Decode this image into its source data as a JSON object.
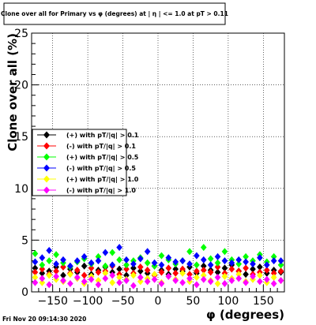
{
  "title": "Clone  over all for Primary vs φ (degrees) at | η | <= 1.0 at pT > 0.11",
  "timestamp": "Fri Nov 20 09:14:30 2020",
  "chart_data": {
    "type": "scatter",
    "xlabel": "φ (degrees)",
    "ylabel": "Clone  over all (%)",
    "xlim": [
      -180,
      180
    ],
    "ylim": [
      0,
      25
    ],
    "x_ticks": [
      -150,
      -100,
      -50,
      0,
      50,
      100,
      150
    ],
    "y_ticks": [
      0,
      5,
      10,
      15,
      20,
      25
    ],
    "grid": true,
    "legend_position": "left-middle",
    "marker": "diamond",
    "x": [
      -175,
      -165,
      -155,
      -145,
      -135,
      -125,
      -115,
      -105,
      -95,
      -85,
      -75,
      -65,
      -55,
      -45,
      -35,
      -25,
      -15,
      -5,
      5,
      15,
      25,
      35,
      45,
      55,
      65,
      75,
      85,
      95,
      105,
      115,
      125,
      135,
      145,
      155,
      165,
      175
    ],
    "series": [
      {
        "name": "(+) with pT/|q| > 0.1",
        "color": "#000000",
        "values": [
          2.3,
          1.8,
          2.0,
          2.4,
          1.6,
          2.2,
          1.9,
          2.5,
          1.7,
          2.1,
          2.4,
          1.9,
          2.2,
          1.6,
          2.3,
          2.0,
          1.8,
          2.5,
          2.1,
          1.7,
          2.2,
          2.0,
          2.4,
          1.8,
          2.5,
          2.1,
          1.9,
          2.3,
          2.6,
          2.0,
          1.7,
          2.2,
          2.4,
          1.8,
          2.1,
          1.9
        ]
      },
      {
        "name": "(-) with pT/|q| > 0.1",
        "color": "#ff0000",
        "values": [
          1.9,
          2.2,
          1.7,
          2.0,
          2.4,
          1.8,
          2.1,
          1.6,
          2.3,
          1.9,
          2.0,
          2.5,
          1.7,
          2.2,
          1.8,
          2.4,
          2.1,
          1.6,
          1.9,
          2.3,
          1.8,
          2.2,
          1.7,
          2.0,
          2.1,
          1.9,
          2.4,
          1.8,
          2.2,
          2.0,
          2.3,
          1.7,
          1.9,
          2.1,
          1.8,
          2.0
        ]
      },
      {
        "name": "(+) with pT/|q| > 0.5",
        "color": "#00ff00",
        "values": [
          3.7,
          2.6,
          3.0,
          3.6,
          2.8,
          2.4,
          2.9,
          3.2,
          2.7,
          3.4,
          2.5,
          3.8,
          3.1,
          2.6,
          3.0,
          3.3,
          2.8,
          2.5,
          3.5,
          3.1,
          2.7,
          3.0,
          3.9,
          2.6,
          4.3,
          3.2,
          2.8,
          3.9,
          3.1,
          2.7,
          3.4,
          3.0,
          3.6,
          2.9,
          3.4,
          2.6
        ]
      },
      {
        "name": "(-) with pT/|q| > 0.5",
        "color": "#0000ff",
        "values": [
          2.9,
          3.3,
          4.0,
          2.7,
          3.1,
          2.5,
          3.0,
          3.4,
          2.8,
          3.0,
          3.8,
          2.6,
          4.3,
          3.1,
          2.7,
          3.2,
          3.9,
          2.8,
          2.6,
          3.3,
          2.9,
          3.0,
          2.7,
          3.5,
          3.1,
          2.6,
          3.4,
          3.0,
          2.8,
          3.1,
          2.9,
          2.7,
          3.3,
          2.6,
          3.0,
          3.0
        ]
      },
      {
        "name": "(+) with pT/|q| > 1.0",
        "color": "#ffff00",
        "values": [
          1.4,
          0.9,
          1.6,
          1.2,
          1.0,
          1.7,
          1.3,
          0.8,
          1.5,
          1.1,
          1.8,
          0.9,
          1.4,
          1.2,
          1.6,
          1.0,
          1.3,
          1.7,
          0.9,
          1.5,
          1.2,
          1.8,
          1.0,
          1.4,
          1.6,
          1.1,
          0.8,
          1.5,
          1.3,
          1.7,
          1.0,
          1.2,
          1.6,
          0.9,
          1.4,
          1.1
        ]
      },
      {
        "name": "(-) with pT/|q| > 1.0",
        "color": "#ff00ff",
        "values": [
          0.9,
          1.3,
          0.7,
          1.5,
          1.1,
          0.8,
          1.4,
          1.0,
          1.2,
          0.7,
          1.3,
          1.6,
          0.9,
          1.1,
          0.6,
          1.4,
          1.0,
          1.2,
          0.8,
          1.5,
          1.1,
          0.9,
          1.3,
          0.7,
          1.2,
          1.0,
          1.4,
          0.8,
          1.1,
          1.3,
          0.9,
          1.5,
          1.0,
          1.2,
          0.8,
          1.1
        ]
      }
    ]
  }
}
